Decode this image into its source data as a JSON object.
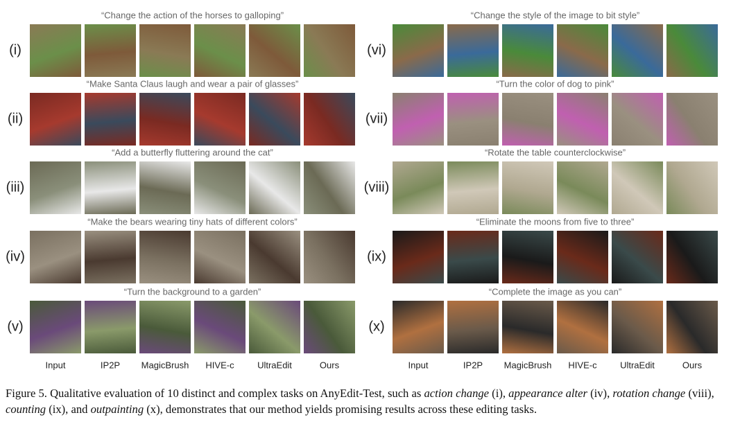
{
  "figure": {
    "panels": [
      {
        "rows": [
          {
            "label": "(i)",
            "prompt": "“Change the action of the horses to galloping”"
          },
          {
            "label": "(ii)",
            "prompt": "“Make Santa Claus laugh and wear a pair of glasses”"
          },
          {
            "label": "(iii)",
            "prompt": "“Add a butterfly fluttering around the cat”"
          },
          {
            "label": "(iv)",
            "prompt": "“Make the bears wearing tiny hats of different colors”"
          },
          {
            "label": "(v)",
            "prompt": "“Turn the background to a garden”"
          }
        ],
        "columns": [
          "Input",
          "IP2P",
          "MagicBrush",
          "HIVE-c",
          "UltraEdit",
          "Ours"
        ]
      },
      {
        "rows": [
          {
            "label": "(vi)",
            "prompt": "“Change the style of the image to bit style”"
          },
          {
            "label": "(vii)",
            "prompt": "“Turn the color of dog to pink”"
          },
          {
            "label": "(viii)",
            "prompt": "“Rotate the table counterclockwise”"
          },
          {
            "label": "(ix)",
            "prompt": "“Eliminate the moons from five to three”"
          },
          {
            "label": "(x)",
            "prompt": "“Complete the image as you can”"
          }
        ],
        "columns": [
          "Input",
          "IP2P",
          "MagicBrush",
          "HIVE-c",
          "UltraEdit",
          "Ours"
        ]
      }
    ],
    "caption": [
      {
        "text": "Figure 5. Qualitative evaluation of 10 distinct and complex tasks on AnyEdit-Test, such as ",
        "italic": false
      },
      {
        "text": "action change",
        "italic": true
      },
      {
        "text": " (i), ",
        "italic": false
      },
      {
        "text": "appearance alter",
        "italic": true
      },
      {
        "text": " (iv), ",
        "italic": false
      },
      {
        "text": "rotation change",
        "italic": true
      },
      {
        "text": " (viii), ",
        "italic": false
      },
      {
        "text": "counting",
        "italic": true
      },
      {
        "text": " (ix), and ",
        "italic": false
      },
      {
        "text": "outpainting",
        "italic": true
      },
      {
        "text": " (x), demonstrates that our method yields promising results across these editing tasks.",
        "italic": false
      }
    ]
  }
}
